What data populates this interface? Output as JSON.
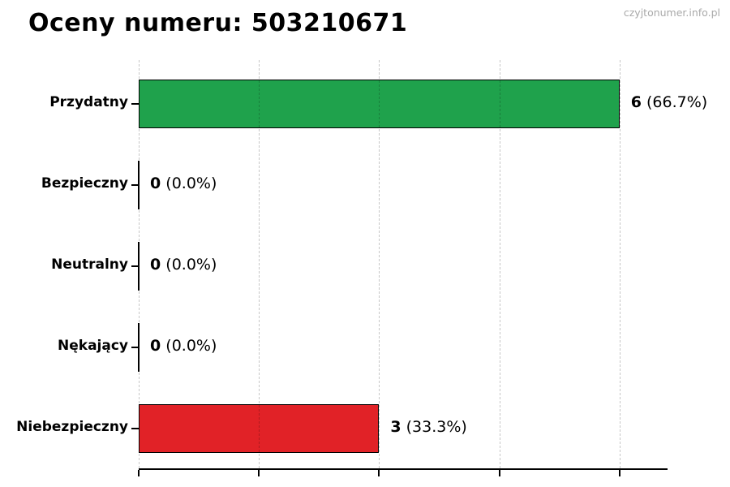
{
  "title": "Oceny numeru: 503210671",
  "watermark": "czyjtonumer.info.pl",
  "chart_data": {
    "type": "bar",
    "orientation": "horizontal",
    "title": "Oceny numeru: 503210671",
    "categories": [
      "Przydatny",
      "Bezpieczny",
      "Neutralny",
      "Nękający",
      "Niebezpieczny"
    ],
    "values": [
      6,
      0,
      0,
      0,
      3
    ],
    "percents": [
      66.7,
      0.0,
      0.0,
      0.0,
      33.3
    ],
    "value_labels": [
      {
        "count": "6",
        "percent": "(66.7%)"
      },
      {
        "count": "0",
        "percent": "(0.0%)"
      },
      {
        "count": "0",
        "percent": "(0.0%)"
      },
      {
        "count": "0",
        "percent": "(0.0%)"
      },
      {
        "count": "3",
        "percent": "(33.3%)"
      }
    ],
    "bar_colors": [
      "#1fa24c",
      null,
      null,
      null,
      "#e12227"
    ],
    "bar_edge_color": "#000000",
    "xlabel": "",
    "ylabel": "",
    "xlim": [
      0,
      6.6
    ],
    "xticks": [
      0,
      1.5,
      3,
      4.5,
      6
    ],
    "xtick_labels_visible": false,
    "grid": "vertical-dashed",
    "legend": "none"
  },
  "colors": {
    "positive_bar": "#1fa24c",
    "negative_bar": "#e12227",
    "grid": "#c9c9c9",
    "axis": "#000000",
    "watermark": "#a9a9a9",
    "background": "#ffffff"
  }
}
